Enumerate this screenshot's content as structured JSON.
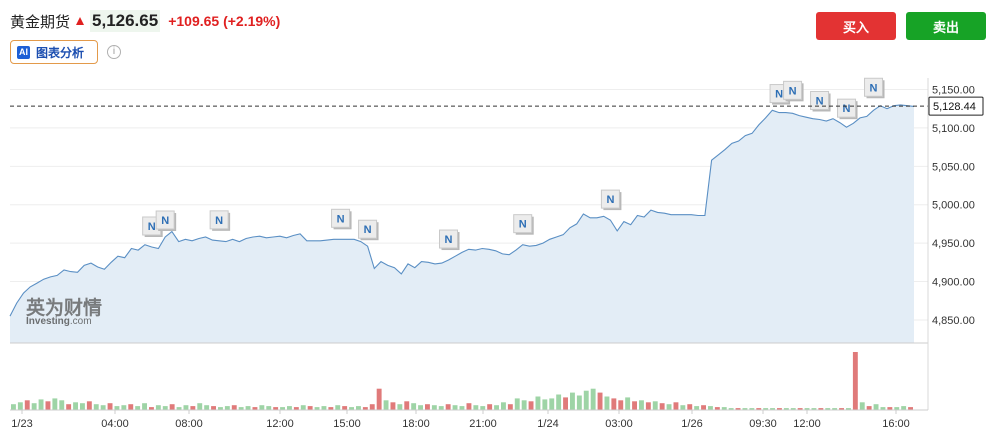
{
  "header": {
    "title": "黄金期货",
    "price": "5,126.65",
    "change": "+109.65 (+2.19%)",
    "colors": {
      "up": "#e02020",
      "buy": "#e33333",
      "sell": "#17a326"
    }
  },
  "toolbar": {
    "ai_badge": "AI",
    "ai_label": "图表分析",
    "info_icon": "i",
    "buy_label": "买入",
    "sell_label": "卖出"
  },
  "watermark": {
    "cn": "英为财情",
    "en": "Investing",
    "suffix": ".com"
  },
  "news_marker": "N",
  "chart_data": {
    "type": "area",
    "current_price": 5128.44,
    "current_price_label": "5,128.44",
    "y_ticks": [
      4850,
      4900,
      4950,
      5000,
      5050,
      5100,
      5150
    ],
    "y_tick_labels": [
      "4,850.00",
      "4,900.00",
      "4,950.00",
      "5,000.00",
      "5,050.00",
      "5,100.00",
      "5,150.00"
    ],
    "ylim": [
      4820,
      5165
    ],
    "x_tick_labels": [
      "1/23",
      "04:00",
      "08:00",
      "12:00",
      "15:00",
      "18:00",
      "21:00",
      "1/24",
      "03:00",
      "1/26",
      "09:30",
      "12:00",
      "16:00"
    ],
    "price_series": [
      4855,
      4872,
      4885,
      4893,
      4898,
      4903,
      4906,
      4908,
      4915,
      4913,
      4912,
      4921,
      4924,
      4919,
      4916,
      4925,
      4933,
      4931,
      4943,
      4941,
      4948,
      4945,
      4943,
      4958,
      4965,
      4952,
      4955,
      4953,
      4956,
      4958,
      4954,
      4953,
      4952,
      4955,
      4952,
      4956,
      4958,
      4959,
      4957,
      4958,
      4959,
      4957,
      4960,
      4962,
      4953,
      4953,
      4953,
      4954,
      4955,
      4955,
      4955,
      4955,
      4952,
      4946,
      4917,
      4926,
      4921,
      4918,
      4910,
      4923,
      4918,
      4926,
      4925,
      4923,
      4924,
      4928,
      4933,
      4938,
      4942,
      4941,
      4943,
      4942,
      4940,
      4936,
      4935,
      4941,
      4948,
      4946,
      4947,
      4950,
      4955,
      4958,
      4961,
      4970,
      4975,
      4988,
      4983,
      4983,
      4985,
      4980,
      4966,
      4978,
      4974,
      4986,
      4984,
      4993,
      4990,
      4989,
      4987,
      4987,
      4987,
      4987,
      4986,
      4986,
      5058,
      5065,
      5072,
      5080,
      5083,
      5090,
      5093,
      5104,
      5113,
      5123,
      5120,
      5120,
      5119,
      5116,
      5114,
      5112,
      5111,
      5109,
      5112,
      5107,
      5101,
      5106,
      5113,
      5115,
      5123,
      5129,
      5125,
      5129,
      5130,
      5129,
      5128
    ],
    "volume": [
      {
        "v": 6,
        "d": "up"
      },
      {
        "v": 8,
        "d": "up"
      },
      {
        "v": 10,
        "d": "down"
      },
      {
        "v": 7,
        "d": "up"
      },
      {
        "v": 11,
        "d": "up"
      },
      {
        "v": 9,
        "d": "down"
      },
      {
        "v": 12,
        "d": "up"
      },
      {
        "v": 10,
        "d": "up"
      },
      {
        "v": 6,
        "d": "down"
      },
      {
        "v": 8,
        "d": "up"
      },
      {
        "v": 7,
        "d": "up"
      },
      {
        "v": 9,
        "d": "down"
      },
      {
        "v": 6,
        "d": "up"
      },
      {
        "v": 5,
        "d": "up"
      },
      {
        "v": 7,
        "d": "down"
      },
      {
        "v": 4,
        "d": "up"
      },
      {
        "v": 5,
        "d": "up"
      },
      {
        "v": 6,
        "d": "down"
      },
      {
        "v": 4,
        "d": "up"
      },
      {
        "v": 7,
        "d": "up"
      },
      {
        "v": 3,
        "d": "down"
      },
      {
        "v": 5,
        "d": "up"
      },
      {
        "v": 4,
        "d": "up"
      },
      {
        "v": 6,
        "d": "down"
      },
      {
        "v": 3,
        "d": "up"
      },
      {
        "v": 5,
        "d": "up"
      },
      {
        "v": 4,
        "d": "down"
      },
      {
        "v": 7,
        "d": "up"
      },
      {
        "v": 5,
        "d": "up"
      },
      {
        "v": 4,
        "d": "down"
      },
      {
        "v": 3,
        "d": "up"
      },
      {
        "v": 4,
        "d": "up"
      },
      {
        "v": 5,
        "d": "down"
      },
      {
        "v": 3,
        "d": "up"
      },
      {
        "v": 4,
        "d": "up"
      },
      {
        "v": 3,
        "d": "down"
      },
      {
        "v": 5,
        "d": "up"
      },
      {
        "v": 4,
        "d": "up"
      },
      {
        "v": 3,
        "d": "down"
      },
      {
        "v": 3,
        "d": "up"
      },
      {
        "v": 4,
        "d": "up"
      },
      {
        "v": 3,
        "d": "down"
      },
      {
        "v": 5,
        "d": "up"
      },
      {
        "v": 4,
        "d": "down"
      },
      {
        "v": 3,
        "d": "up"
      },
      {
        "v": 4,
        "d": "up"
      },
      {
        "v": 3,
        "d": "down"
      },
      {
        "v": 5,
        "d": "up"
      },
      {
        "v": 4,
        "d": "down"
      },
      {
        "v": 3,
        "d": "up"
      },
      {
        "v": 4,
        "d": "up"
      },
      {
        "v": 3,
        "d": "down"
      },
      {
        "v": 6,
        "d": "down"
      },
      {
        "v": 22,
        "d": "down"
      },
      {
        "v": 10,
        "d": "up"
      },
      {
        "v": 8,
        "d": "down"
      },
      {
        "v": 6,
        "d": "up"
      },
      {
        "v": 9,
        "d": "down"
      },
      {
        "v": 7,
        "d": "up"
      },
      {
        "v": 5,
        "d": "up"
      },
      {
        "v": 6,
        "d": "down"
      },
      {
        "v": 5,
        "d": "up"
      },
      {
        "v": 4,
        "d": "up"
      },
      {
        "v": 6,
        "d": "down"
      },
      {
        "v": 5,
        "d": "up"
      },
      {
        "v": 4,
        "d": "up"
      },
      {
        "v": 7,
        "d": "down"
      },
      {
        "v": 5,
        "d": "up"
      },
      {
        "v": 4,
        "d": "up"
      },
      {
        "v": 6,
        "d": "down"
      },
      {
        "v": 5,
        "d": "up"
      },
      {
        "v": 8,
        "d": "up"
      },
      {
        "v": 6,
        "d": "down"
      },
      {
        "v": 12,
        "d": "up"
      },
      {
        "v": 10,
        "d": "up"
      },
      {
        "v": 9,
        "d": "down"
      },
      {
        "v": 14,
        "d": "up"
      },
      {
        "v": 11,
        "d": "up"
      },
      {
        "v": 12,
        "d": "up"
      },
      {
        "v": 16,
        "d": "up"
      },
      {
        "v": 13,
        "d": "down"
      },
      {
        "v": 18,
        "d": "up"
      },
      {
        "v": 15,
        "d": "up"
      },
      {
        "v": 20,
        "d": "up"
      },
      {
        "v": 22,
        "d": "up"
      },
      {
        "v": 18,
        "d": "down"
      },
      {
        "v": 14,
        "d": "up"
      },
      {
        "v": 12,
        "d": "down"
      },
      {
        "v": 10,
        "d": "down"
      },
      {
        "v": 13,
        "d": "up"
      },
      {
        "v": 9,
        "d": "down"
      },
      {
        "v": 10,
        "d": "up"
      },
      {
        "v": 8,
        "d": "down"
      },
      {
        "v": 9,
        "d": "up"
      },
      {
        "v": 7,
        "d": "down"
      },
      {
        "v": 6,
        "d": "up"
      },
      {
        "v": 8,
        "d": "down"
      },
      {
        "v": 5,
        "d": "up"
      },
      {
        "v": 6,
        "d": "down"
      },
      {
        "v": 4,
        "d": "up"
      },
      {
        "v": 5,
        "d": "down"
      },
      {
        "v": 4,
        "d": "up"
      },
      {
        "v": 3,
        "d": "down"
      },
      {
        "v": 3,
        "d": "up"
      },
      {
        "v": 2,
        "d": "up"
      },
      {
        "v": 2,
        "d": "down"
      },
      {
        "v": 2,
        "d": "up"
      },
      {
        "v": 2,
        "d": "up"
      },
      {
        "v": 2,
        "d": "down"
      },
      {
        "v": 2,
        "d": "up"
      },
      {
        "v": 2,
        "d": "up"
      },
      {
        "v": 2,
        "d": "down"
      },
      {
        "v": 2,
        "d": "up"
      },
      {
        "v": 2,
        "d": "up"
      },
      {
        "v": 2,
        "d": "down"
      },
      {
        "v": 2,
        "d": "up"
      },
      {
        "v": 2,
        "d": "up"
      },
      {
        "v": 2,
        "d": "down"
      },
      {
        "v": 2,
        "d": "up"
      },
      {
        "v": 2,
        "d": "up"
      },
      {
        "v": 2,
        "d": "down"
      },
      {
        "v": 2,
        "d": "up"
      },
      {
        "v": 60,
        "d": "down"
      },
      {
        "v": 8,
        "d": "up"
      },
      {
        "v": 4,
        "d": "down"
      },
      {
        "v": 6,
        "d": "up"
      },
      {
        "v": 3,
        "d": "up"
      },
      {
        "v": 3,
        "d": "down"
      },
      {
        "v": 3,
        "d": "up"
      },
      {
        "v": 4,
        "d": "up"
      },
      {
        "v": 3,
        "d": "down"
      }
    ]
  }
}
